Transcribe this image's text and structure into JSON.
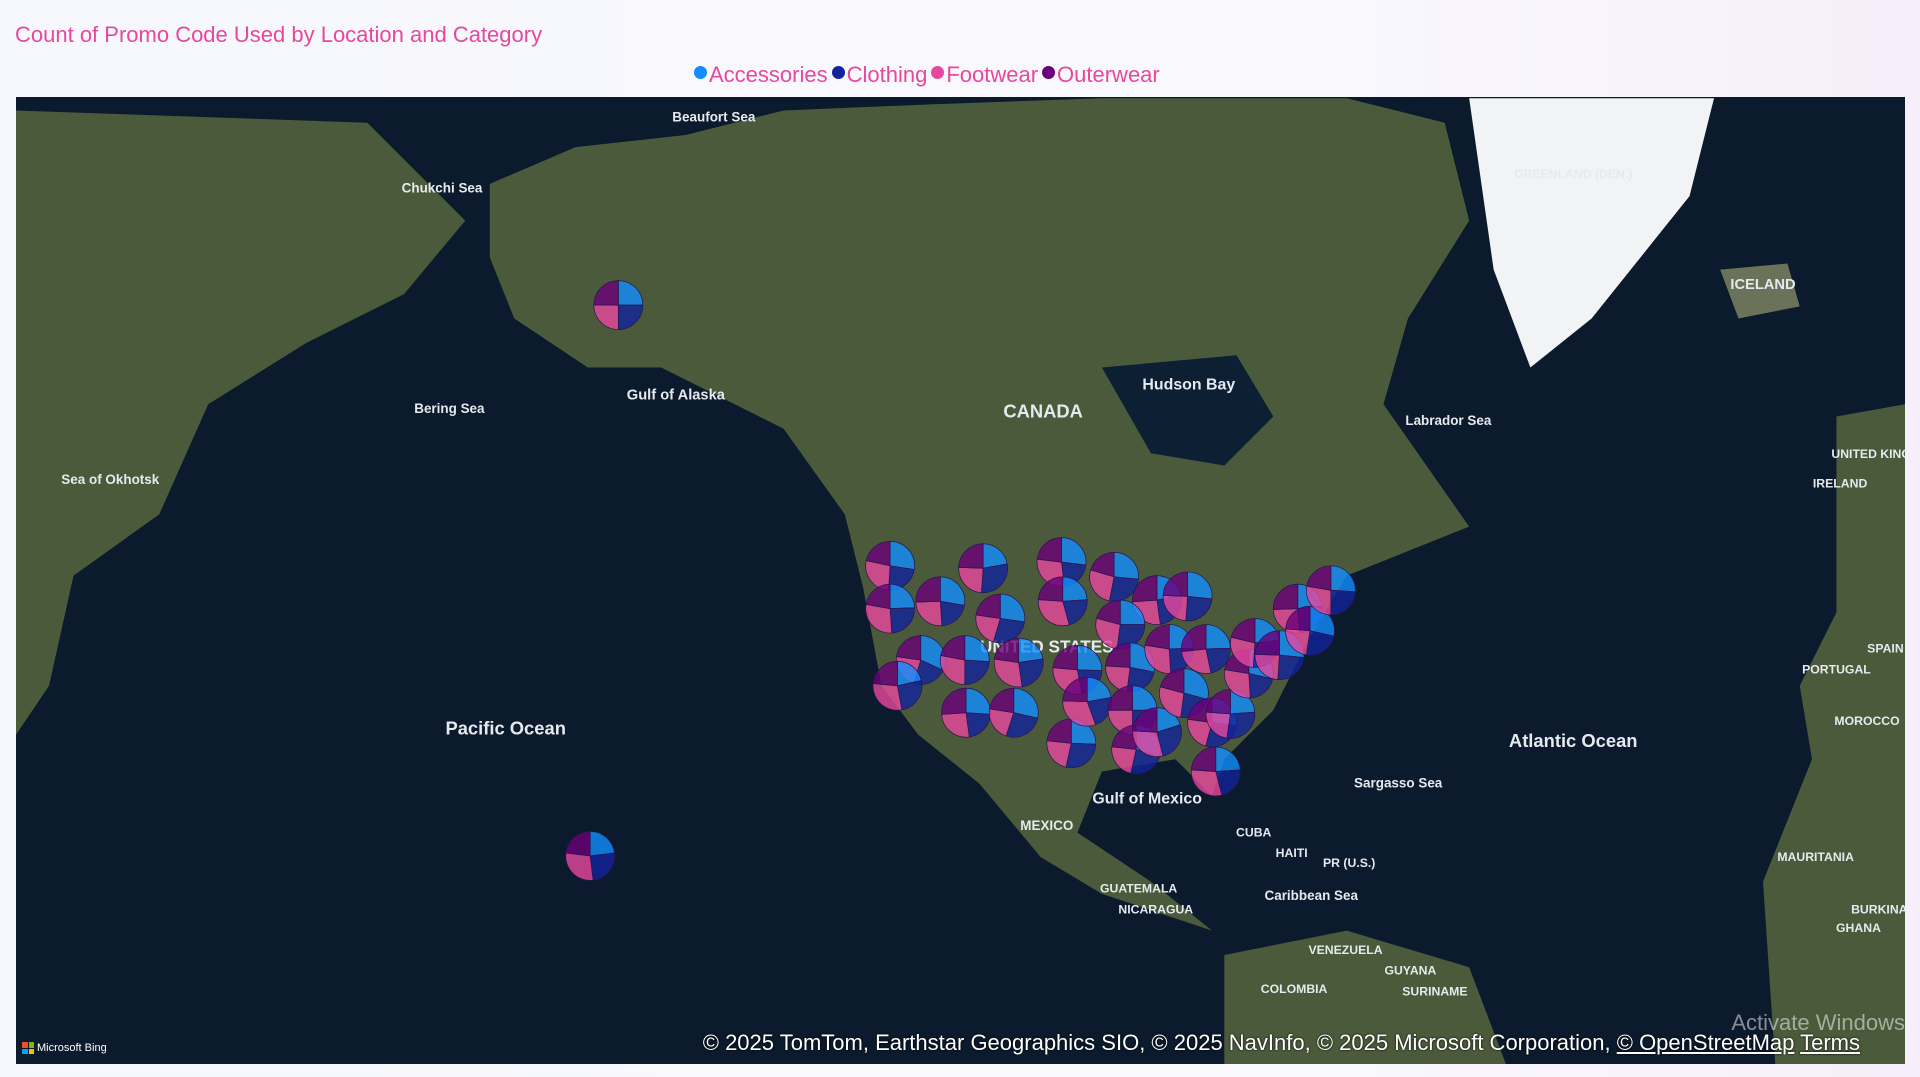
{
  "title": "Count of Promo Code Used by Location and Category",
  "legend": [
    {
      "label": "Accessories",
      "color": "#118dff"
    },
    {
      "label": "Clothing",
      "color": "#12239e"
    },
    {
      "label": "Footwear",
      "color": "#e8479f"
    },
    {
      "label": "Outerwear",
      "color": "#6b007b"
    }
  ],
  "map_labels": [
    "Beaufort Sea",
    "Chukchi Sea",
    "GREENLAND (DEN.)",
    "ICELAND",
    "Hudson Bay",
    "CANADA",
    "Labrador Sea",
    "Gulf of Alaska",
    "Bering Sea",
    "Sea of Okhotsk",
    "IRELAND",
    "UNITED KINGDOM",
    "SPAIN",
    "PORTUGAL",
    "MOROCCO",
    "Pacific Ocean",
    "Atlantic Ocean",
    "Sargasso Sea",
    "UNITED STATES",
    "Gulf of Mexico",
    "MEXICO",
    "CUBA",
    "HAITI",
    "PR (U.S.)",
    "GUATEMALA",
    "NICARAGUA",
    "Caribbean Sea",
    "VENEZUELA",
    "GUYANA",
    "SURINAME",
    "COLOMBIA",
    "MAURITANIA",
    "BURKINA",
    "GHANA"
  ],
  "attribution": {
    "text": "© 2025 TomTom, Earthstar Geographics SIO, © 2025 NavInfo, © 2025 Microsoft Corporation, ",
    "osm_link": "© OpenStreetMap",
    "terms_link": "Terms"
  },
  "provider": "Microsoft Bing",
  "watermark": "Activate Windows"
}
